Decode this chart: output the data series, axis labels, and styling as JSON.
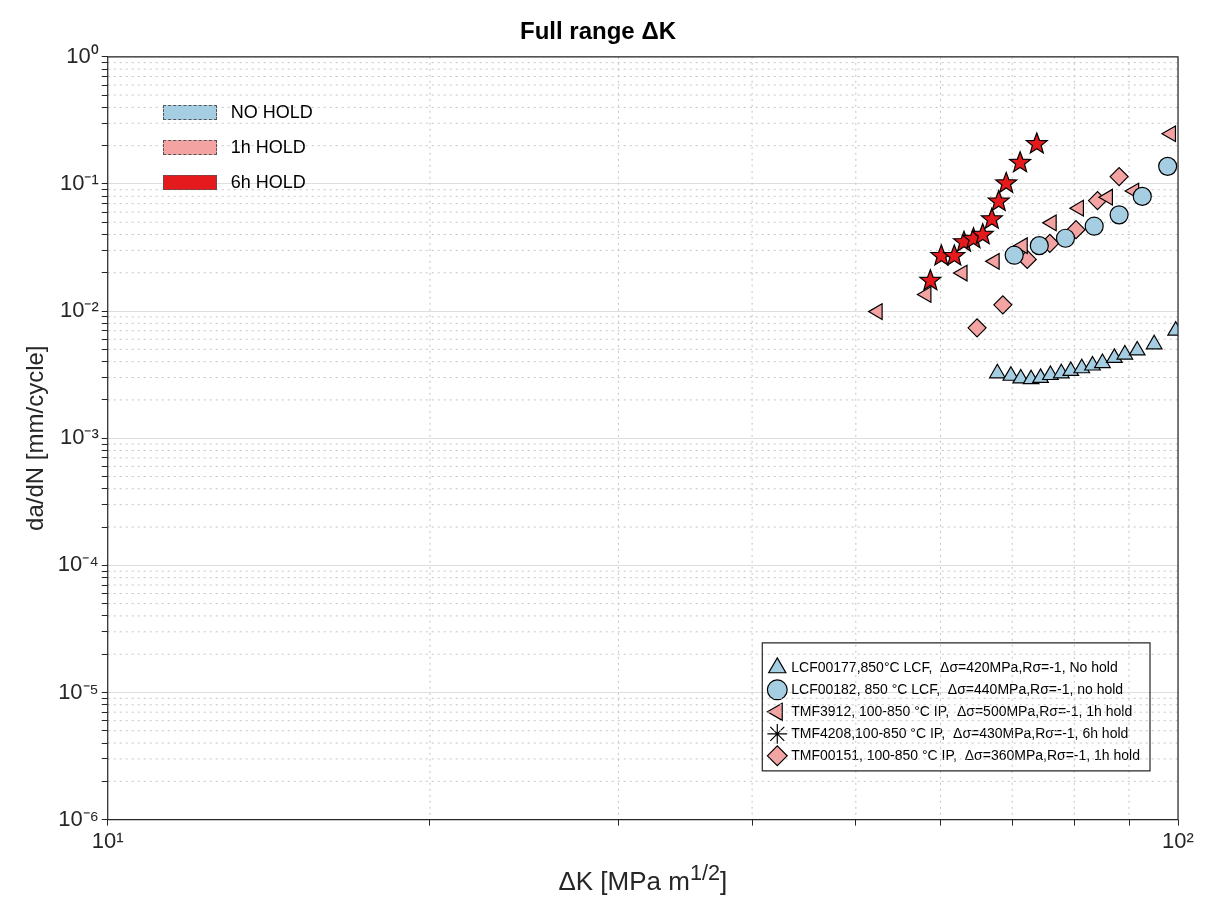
{
  "chart_data": {
    "type": "scatter",
    "title": "Full range ΔK",
    "xlabel": "ΔK  [MPa m$^{1/2}$]",
    "ylabel": "da/dN [mm/cycle]",
    "log": "xy",
    "grid": true,
    "legend": "bottom right",
    "xlim": [
      10,
      100
    ],
    "ylim": [
      1e-06,
      1
    ],
    "xticks": [
      {
        "value": 10,
        "label": "10¹"
      },
      {
        "value": 20,
        "label": null
      },
      {
        "value": 30,
        "label": null
      },
      {
        "value": 40,
        "label": null
      },
      {
        "value": 50,
        "label": null
      },
      {
        "value": 60,
        "label": null
      },
      {
        "value": 70,
        "label": null
      },
      {
        "value": 80,
        "label": null
      },
      {
        "value": 90,
        "label": null
      },
      {
        "value": 100,
        "label": "10²"
      }
    ],
    "yticks": [
      {
        "value": 1e-06,
        "label": "10⁻⁶"
      },
      {
        "value": 2e-06,
        "label": null
      },
      {
        "value": 3e-06,
        "label": null
      },
      {
        "value": 4e-06,
        "label": null
      },
      {
        "value": 5e-06,
        "label": null
      },
      {
        "value": 6e-06,
        "label": null
      },
      {
        "value": 7e-06,
        "label": null
      },
      {
        "value": 8e-06,
        "label": null
      },
      {
        "value": 9e-06,
        "label": null
      },
      {
        "value": 1e-05,
        "label": "10⁻⁵"
      },
      {
        "value": 2e-05,
        "label": null
      },
      {
        "value": 3e-05,
        "label": null
      },
      {
        "value": 4e-05,
        "label": null
      },
      {
        "value": 5e-05,
        "label": null
      },
      {
        "value": 6e-05,
        "label": null
      },
      {
        "value": 7e-05,
        "label": null
      },
      {
        "value": 8e-05,
        "label": null
      },
      {
        "value": 9e-05,
        "label": null
      },
      {
        "value": 0.0001,
        "label": "10⁻⁴"
      },
      {
        "value": 0.0002,
        "label": null
      },
      {
        "value": 0.0003,
        "label": null
      },
      {
        "value": 0.0004,
        "label": null
      },
      {
        "value": 0.0005,
        "label": null
      },
      {
        "value": 0.0006,
        "label": null
      },
      {
        "value": 0.0007,
        "label": null
      },
      {
        "value": 0.0008,
        "label": null
      },
      {
        "value": 0.0009,
        "label": null
      },
      {
        "value": 0.001,
        "label": "10⁻³"
      },
      {
        "value": 0.002,
        "label": null
      },
      {
        "value": 0.003,
        "label": null
      },
      {
        "value": 0.004,
        "label": null
      },
      {
        "value": 0.005,
        "label": null
      },
      {
        "value": 0.006,
        "label": null
      },
      {
        "value": 0.007,
        "label": null
      },
      {
        "value": 0.008,
        "label": null
      },
      {
        "value": 0.009,
        "label": null
      },
      {
        "value": 0.01,
        "label": "10⁻²"
      },
      {
        "value": 0.02,
        "label": null
      },
      {
        "value": 0.03,
        "label": null
      },
      {
        "value": 0.04,
        "label": null
      },
      {
        "value": 0.05,
        "label": null
      },
      {
        "value": 0.06,
        "label": null
      },
      {
        "value": 0.07,
        "label": null
      },
      {
        "value": 0.08,
        "label": null
      },
      {
        "value": 0.09,
        "label": null
      },
      {
        "value": 0.1,
        "label": "10⁻¹"
      },
      {
        "value": 0.2,
        "label": null
      },
      {
        "value": 0.3,
        "label": null
      },
      {
        "value": 0.4,
        "label": null
      },
      {
        "value": 0.5,
        "label": null
      },
      {
        "value": 0.6,
        "label": null
      },
      {
        "value": 0.7,
        "label": null
      },
      {
        "value": 0.8,
        "label": null
      },
      {
        "value": 0.9,
        "label": null
      },
      {
        "value": 1,
        "label": "10⁰"
      }
    ],
    "annotations": [
      "NO HOLD",
      "1h HOLD",
      "6h HOLD"
    ],
    "series": [
      {
        "name": "LCF00177,850°C LCF,  Δσ=420MPa,Rσ=-1, No hold",
        "color": "#a6cee3",
        "marker": "triangle",
        "x": [
          67.8,
          69.8,
          71.3,
          72.9,
          74.4,
          76.0,
          77.8,
          79.4,
          81.3,
          83.2,
          85.0,
          87.2,
          89.2,
          91.6,
          95.0,
          99.5
        ],
        "values": [
          0.00324,
          0.0031,
          0.00295,
          0.00291,
          0.00298,
          0.00314,
          0.00324,
          0.00338,
          0.00355,
          0.00373,
          0.0039,
          0.00428,
          0.00455,
          0.0049,
          0.00548,
          0.00702
        ]
      },
      {
        "name": "LCF00182, 850 °C LCF,  Δσ=440MPa,Rσ=-1, no hold",
        "color": "#a6cee3",
        "marker": "circle",
        "x": [
          70.3,
          74.2,
          78.5,
          83.5,
          88.1,
          92.6,
          97.8
        ],
        "values": [
          0.0275,
          0.0327,
          0.0374,
          0.0465,
          0.0571,
          0.0798,
          0.1375
        ]
      },
      {
        "name": "TMF3912, 100-850 °C IP,  Δσ=500MPa,Rσ=-1, 1h hold",
        "color": "#f4a3a3",
        "marker": "triangle-left",
        "x": [
          52.4,
          58.2,
          62.9,
          67.4,
          71.6,
          76.2,
          80.8,
          86.0,
          91.0,
          98.5
        ],
        "values": [
          0.0099,
          0.0135,
          0.0199,
          0.0246,
          0.0327,
          0.0494,
          0.0645,
          0.0787,
          0.088,
          0.248
        ]
      },
      {
        "name": "TMF4208,100-850 °C IP,  Δσ=430MPa,Rσ=-1, 6h hold",
        "color": "#e41a1c",
        "marker": "star",
        "x": [
          58.7,
          60.1,
          61.8,
          63.1,
          64.4,
          65.7,
          67.0,
          68.0,
          69.1,
          71.2,
          73.8
        ],
        "values": [
          0.0173,
          0.0271,
          0.0271,
          0.0348,
          0.037,
          0.0398,
          0.0527,
          0.0727,
          0.101,
          0.1466,
          0.206
        ]
      },
      {
        "name": "TMF00151, 100-850 °C IP,  Δσ=360MPa,Rσ=-1, 1h hold",
        "color": "#f4a3a3",
        "marker": "diamond",
        "x": [
          64.9,
          68.6,
          72.3,
          75.9,
          80.3,
          84.1,
          88.1
        ],
        "values": [
          0.00738,
          0.0112,
          0.0255,
          0.0341,
          0.0437,
          0.074,
          0.1142
        ]
      }
    ]
  }
}
